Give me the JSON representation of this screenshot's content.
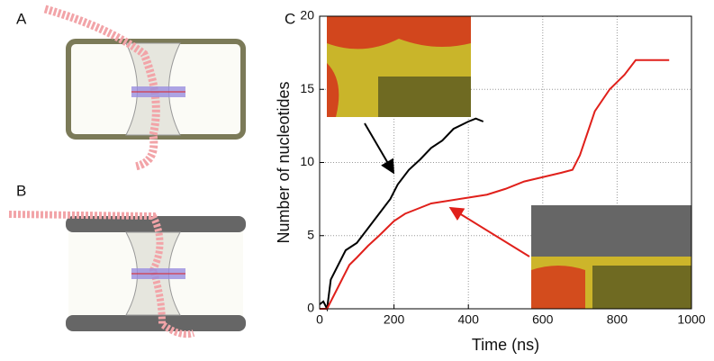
{
  "panel_labels": [
    "A",
    "B",
    "C"
  ],
  "chart_data": {
    "type": "line",
    "xlabel": "Time (ns)",
    "ylabel": "Number of nucleotides",
    "xlim": [
      0,
      1000
    ],
    "ylim": [
      0,
      20
    ],
    "xticks": [
      0,
      200,
      400,
      600,
      800,
      1000
    ],
    "yticks": [
      0,
      5,
      10,
      15,
      20
    ],
    "grid": true,
    "series": [
      {
        "color": "#000000",
        "x": [
          0,
          10,
          20,
          30,
          50,
          70,
          100,
          130,
          160,
          190,
          210,
          240,
          270,
          300,
          330,
          360,
          400,
          420,
          440
        ],
        "values": [
          0.3,
          0.5,
          0,
          2,
          3,
          4,
          4.5,
          5.5,
          6.5,
          7.5,
          8.5,
          9.5,
          10.2,
          11,
          11.5,
          12.3,
          12.8,
          13,
          12.8
        ]
      },
      {
        "color": "#e0201b",
        "x": [
          0,
          20,
          40,
          60,
          80,
          100,
          130,
          160,
          180,
          200,
          230,
          260,
          300,
          350,
          400,
          450,
          500,
          550,
          600,
          650,
          680,
          700,
          720,
          740,
          780,
          820,
          850,
          900,
          940
        ],
        "values": [
          0,
          0,
          1,
          2,
          3,
          3.5,
          4.3,
          5,
          5.5,
          6,
          6.5,
          6.8,
          7.2,
          7.4,
          7.6,
          7.8,
          8.2,
          8.7,
          9,
          9.3,
          9.5,
          10.5,
          12,
          13.5,
          15,
          16,
          17,
          17,
          17
        ]
      }
    ]
  }
}
